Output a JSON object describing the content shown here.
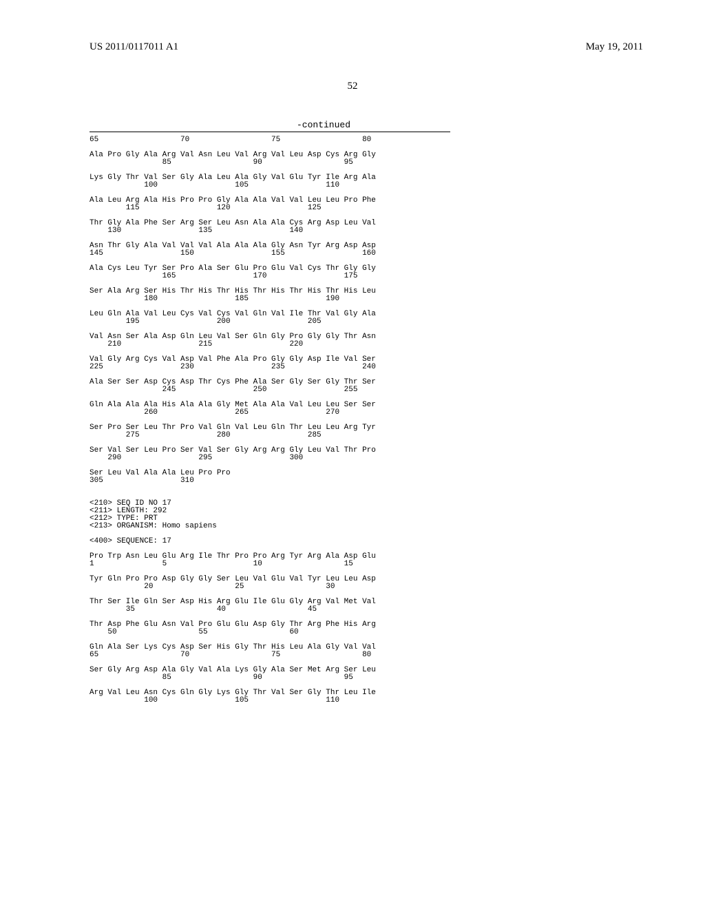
{
  "header": {
    "pub_number": "US 2011/0117011 A1",
    "pub_date": "May 19, 2011"
  },
  "page_number": "52",
  "continued_label": "-continued",
  "seq_body": "65                  70                  75                  80\n\nAla Pro Gly Ala Arg Val Asn Leu Val Arg Val Leu Asp Cys Arg Gly\n                85                  90                  95\n\nLys Gly Thr Val Ser Gly Ala Leu Ala Gly Val Glu Tyr Ile Arg Ala\n            100                 105                 110\n\nAla Leu Arg Ala His Pro Pro Gly Ala Ala Val Val Leu Leu Pro Phe\n        115                 120                 125\n\nThr Gly Ala Phe Ser Arg Ser Leu Asn Ala Ala Cys Arg Asp Leu Val\n    130                 135                 140\n\nAsn Thr Gly Ala Val Val Val Ala Ala Ala Gly Asn Tyr Arg Asp Asp\n145                 150                 155                 160\n\nAla Cys Leu Tyr Ser Pro Ala Ser Glu Pro Glu Val Cys Thr Gly Gly\n                165                 170                 175\n\nSer Ala Arg Ser His Thr His Thr His Thr His Thr His Thr His Leu\n            180                 185                 190\n\nLeu Gln Ala Val Leu Cys Val Cys Val Gln Val Ile Thr Val Gly Ala\n        195                 200                 205\n\nVal Asn Ser Ala Asp Gln Leu Val Ser Gln Gly Pro Gly Gly Thr Asn\n    210                 215                 220\n\nVal Gly Arg Cys Val Asp Val Phe Ala Pro Gly Gly Asp Ile Val Ser\n225                 230                 235                 240\n\nAla Ser Ser Asp Cys Asp Thr Cys Phe Ala Ser Gly Ser Gly Thr Ser\n                245                 250                 255\n\nGln Ala Ala Ala His Ala Ala Gly Met Ala Ala Val Leu Leu Ser Ser\n            260                 265                 270\n\nSer Pro Ser Leu Thr Pro Val Gln Val Leu Gln Thr Leu Leu Arg Tyr\n        275                 280                 285\n\nSer Val Ser Leu Pro Ser Val Ser Gly Arg Arg Gly Leu Val Thr Pro\n    290                 295                 300\n\nSer Leu Val Ala Ala Leu Pro Pro\n305                 310\n\n\n<210> SEQ ID NO 17\n<211> LENGTH: 292\n<212> TYPE: PRT\n<213> ORGANISM: Homo sapiens\n\n<400> SEQUENCE: 17\n\nPro Trp Asn Leu Glu Arg Ile Thr Pro Pro Arg Tyr Arg Ala Asp Glu\n1               5                   10                  15\n\nTyr Gln Pro Pro Asp Gly Gly Ser Leu Val Glu Val Tyr Leu Leu Asp\n            20                  25                  30\n\nThr Ser Ile Gln Ser Asp His Arg Glu Ile Glu Gly Arg Val Met Val\n        35                  40                  45\n\nThr Asp Phe Glu Asn Val Pro Glu Glu Asp Gly Thr Arg Phe His Arg\n    50                  55                  60\n\nGln Ala Ser Lys Cys Asp Ser His Gly Thr His Leu Ala Gly Val Val\n65                  70                  75                  80\n\nSer Gly Arg Asp Ala Gly Val Ala Lys Gly Ala Ser Met Arg Ser Leu\n                85                  90                  95\n\nArg Val Leu Asn Cys Gln Gly Lys Gly Thr Val Ser Gly Thr Leu Ile\n            100                 105                 110"
}
